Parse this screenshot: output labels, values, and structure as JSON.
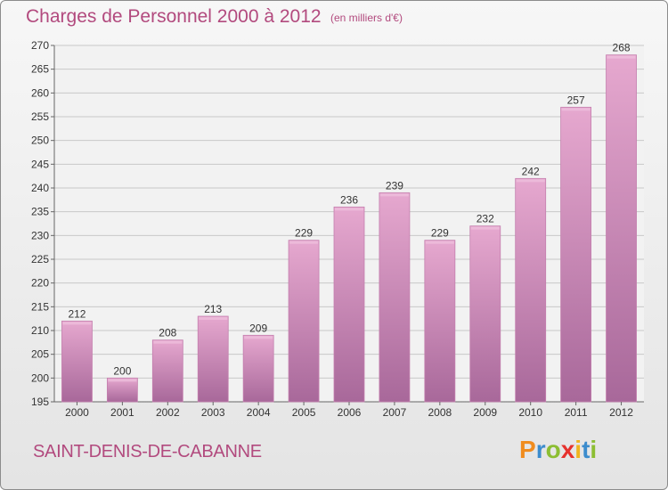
{
  "title": "Charges de Personnel 2000 à 2012",
  "subtitle": "(en milliers d'€)",
  "commune": "SAINT-DENIS-DE-CABANNE",
  "logo": {
    "letters": [
      "P",
      "r",
      "o",
      "x",
      "i",
      "t",
      "i"
    ],
    "colors": [
      "#f08c1e",
      "#3c8ccd",
      "#8cbe32",
      "#e6322d",
      "#f0b41e",
      "#3c8ccd",
      "#8cbe32"
    ]
  },
  "colors": {
    "bar_top": "#e6a8cf",
    "bar_bottom": "#a8689a",
    "text_accent": "#b24a7e",
    "grid": "#c8c8c8"
  },
  "chart_data": {
    "type": "bar",
    "categories": [
      "2000",
      "2001",
      "2002",
      "2003",
      "2004",
      "2005",
      "2006",
      "2007",
      "2008",
      "2009",
      "2010",
      "2011",
      "2012"
    ],
    "values": [
      212,
      200,
      208,
      213,
      209,
      229,
      236,
      239,
      229,
      232,
      242,
      257,
      268
    ],
    "ylim": [
      195,
      270
    ],
    "yticks": [
      195,
      200,
      205,
      210,
      215,
      220,
      225,
      230,
      235,
      240,
      245,
      250,
      255,
      260,
      265,
      270
    ],
    "grid": true,
    "data_labels": true
  }
}
